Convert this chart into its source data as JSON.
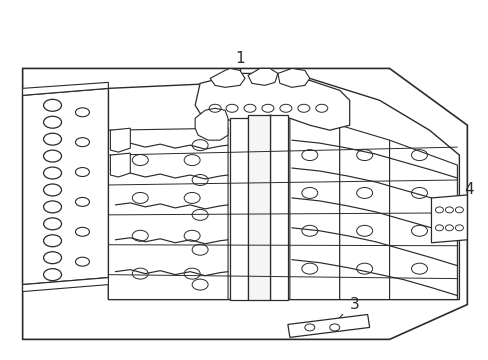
{
  "background_color": "#ffffff",
  "line_color": "#2a2a2a",
  "label_fontsize": 10,
  "line_width": 1.0,
  "fig_width": 4.89,
  "fig_height": 3.6,
  "dpi": 100
}
